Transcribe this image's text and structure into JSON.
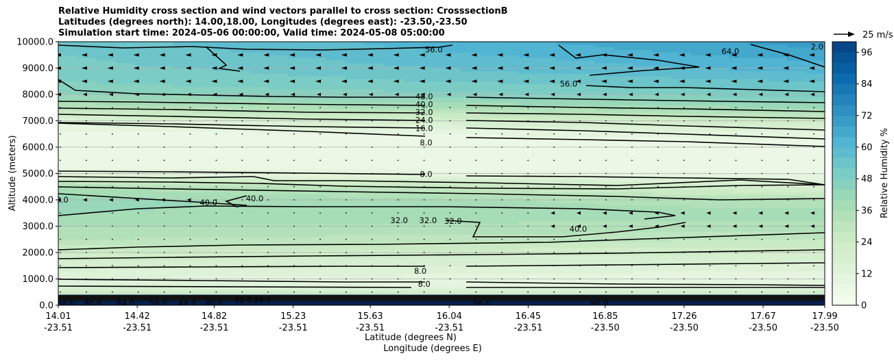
{
  "title_lines": [
    "Relative Humidity cross section and wind vectors parallel to cross section: CrosssectionB",
    "Latitudes (degrees north): 14.00,18.00, Longitudes (degrees east): -23.50,-23.50",
    "Simulation start time: 2024-05-06 00:00:00, Valid time: 2024-05-08 05:00:00"
  ],
  "chart_data": {
    "type": "heatmap",
    "subtype": "filled contour cross section with contour lines and wind vectors",
    "ylabel": "Altitude (meters)",
    "xlabel_lat": "Latitude (degrees N)",
    "xlabel_lon": "Longitude (degrees E)",
    "ylim": [
      0,
      10000
    ],
    "yticks": [
      "0.0",
      "1000.0",
      "2000.0",
      "3000.0",
      "4000.0",
      "5000.0",
      "6000.0",
      "7000.0",
      "8000.0",
      "9000.0",
      "10000.0"
    ],
    "ytick_values": [
      0,
      1000,
      2000,
      3000,
      4000,
      5000,
      6000,
      7000,
      8000,
      9000,
      10000
    ],
    "xticks_lat": [
      "14.01",
      "14.42",
      "14.82",
      "15.23",
      "15.63",
      "16.04",
      "16.45",
      "16.85",
      "17.26",
      "17.67",
      "17.99"
    ],
    "xticks_lon": [
      "-23.51",
      "-23.51",
      "-23.51",
      "-23.51",
      "-23.51",
      "-23.51",
      "-23.51",
      "-23.50",
      "-23.50",
      "-23.50",
      "-23.50"
    ],
    "grid": "horizontal",
    "colorbar": {
      "label": "Relative Humidity %",
      "ticks": [
        "0",
        "12",
        "24",
        "36",
        "48",
        "60",
        "72",
        "84",
        "96"
      ],
      "range": [
        0,
        100
      ],
      "colormap": "GnBu"
    },
    "wind_key": "25 m/s",
    "rh_profile": {
      "altitude_m": [
        0,
        200,
        400,
        700,
        1000,
        1500,
        2000,
        2500,
        3000,
        3500,
        4000,
        4500,
        5000,
        5500,
        6000,
        6500,
        7000,
        7500,
        8000,
        8500,
        9000,
        9500,
        10000
      ],
      "rh_west": [
        88,
        70,
        30,
        14,
        12,
        18,
        24,
        32,
        36,
        40,
        42,
        36,
        10,
        6,
        5,
        6,
        14,
        32,
        44,
        48,
        50,
        52,
        54
      ],
      "rh_east": [
        92,
        78,
        22,
        10,
        8,
        14,
        20,
        28,
        34,
        38,
        32,
        18,
        8,
        5,
        5,
        10,
        24,
        40,
        50,
        56,
        62,
        66,
        70
      ]
    },
    "contour_line_labels": [
      {
        "text": "56.0",
        "lat": 15.96,
        "alt": 9700
      },
      {
        "text": "64.0",
        "lat": 17.5,
        "alt": 9640
      },
      {
        "text": "2.0",
        "lat": 17.95,
        "alt": 9800
      },
      {
        "text": "56.0",
        "lat": 16.66,
        "alt": 8400
      },
      {
        "text": "48.0",
        "lat": 15.91,
        "alt": 7920
      },
      {
        "text": "40.0",
        "lat": 15.91,
        "alt": 7620
      },
      {
        "text": "32.0",
        "lat": 15.91,
        "alt": 7320
      },
      {
        "text": "24.0",
        "lat": 15.91,
        "alt": 7020
      },
      {
        "text": "16.0",
        "lat": 15.91,
        "alt": 6720
      },
      {
        "text": "8.0",
        "lat": 15.92,
        "alt": 6170
      },
      {
        "text": "8.0",
        "lat": 15.92,
        "alt": 4970
      },
      {
        "text": "8.0",
        "lat": 14.03,
        "alt": 4000
      },
      {
        "text": "40.0",
        "lat": 14.79,
        "alt": 3900
      },
      {
        "text": "40.0",
        "lat": 15.03,
        "alt": 4050
      },
      {
        "text": "32.0",
        "lat": 15.78,
        "alt": 3220
      },
      {
        "text": "32.0",
        "lat": 15.93,
        "alt": 3220
      },
      {
        "text": "32.0",
        "lat": 16.06,
        "alt": 3200
      },
      {
        "text": "40.0",
        "lat": 16.71,
        "alt": 2900
      },
      {
        "text": "8.0",
        "lat": 15.89,
        "alt": 1300
      },
      {
        "text": "8.0",
        "lat": 15.91,
        "alt": 800
      },
      {
        "text": "96.0",
        "lat": 16.21,
        "alt": 60
      },
      {
        "text": "96.0",
        "lat": 16.82,
        "alt": 80
      },
      {
        "text": "88.0",
        "lat": 14.05,
        "alt": 80
      },
      {
        "text": "80.0",
        "lat": 14.19,
        "alt": 80
      },
      {
        "text": "64.0",
        "lat": 14.36,
        "alt": 80
      },
      {
        "text": "56.0",
        "lat": 14.53,
        "alt": 80
      },
      {
        "text": "48.0",
        "lat": 14.68,
        "alt": 80
      },
      {
        "text": "40.0",
        "lat": 14.82,
        "alt": 80
      },
      {
        "text": "32.0",
        "lat": 14.97,
        "alt": 200
      },
      {
        "text": "24.0",
        "lat": 15.07,
        "alt": 200
      }
    ]
  }
}
